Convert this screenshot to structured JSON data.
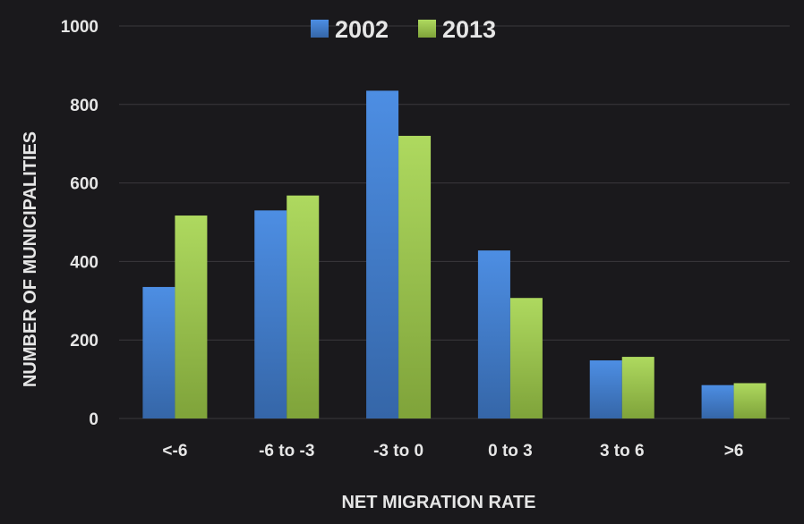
{
  "chart_data": {
    "type": "bar",
    "categories": [
      "<-6",
      "-6 to -3",
      "-3 to 0",
      "0 to 3",
      "3 to 6",
      ">6"
    ],
    "series": [
      {
        "name": "2002",
        "values": [
          335,
          530,
          835,
          428,
          148,
          85
        ],
        "color": "#4a89dc"
      },
      {
        "name": "2013",
        "values": [
          517,
          568,
          720,
          307,
          157,
          90
        ],
        "color": "#a4d15a"
      }
    ],
    "xlabel": "NET MIGRATION RATE",
    "ylabel": "NUMBER OF MUNICIPALITIES",
    "ylim": [
      0,
      1000
    ],
    "yticks": [
      0,
      200,
      400,
      600,
      800,
      1000
    ],
    "grid": true,
    "legend_position": "top-center"
  }
}
